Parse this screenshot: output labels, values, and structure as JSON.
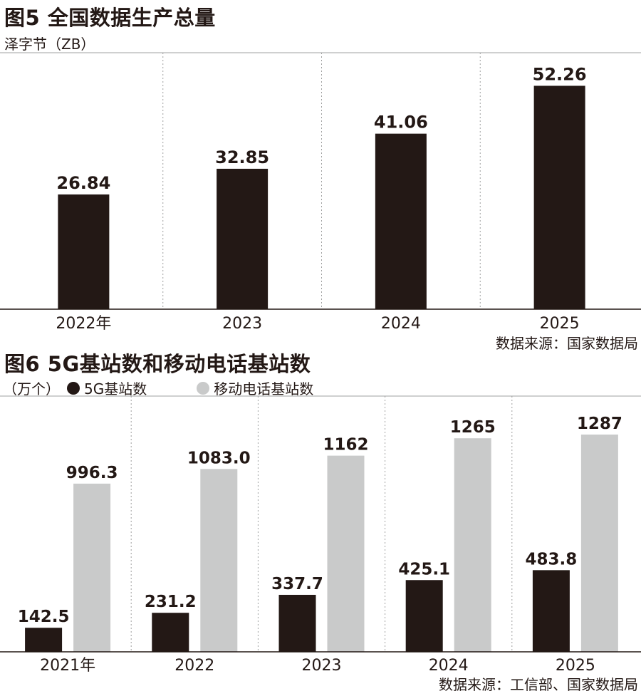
{
  "figure5": {
    "title": "图5 全国数据生产总量",
    "unit": "泽字节（ZB）",
    "source": "数据来源：国家数据局"
  },
  "figure6": {
    "title": "图6 5G基站数和移动电话基站数",
    "unit": "（万个）",
    "legend": [
      "5G基站数",
      "移动电话基站数"
    ],
    "source": "数据来源：工信部、国家数据局"
  },
  "colors": {
    "dark": "#231815",
    "light": "#c9caca",
    "grid": "#9fa0a0"
  },
  "chart_data": [
    {
      "type": "bar",
      "title": "图5 全国数据生产总量",
      "ylabel": "泽字节（ZB）",
      "categories": [
        "2022年",
        "2023",
        "2024",
        "2025"
      ],
      "values": [
        26.84,
        32.85,
        41.06,
        52.26
      ],
      "value_labels": [
        "26.84",
        "32.85",
        "41.06",
        "52.26"
      ],
      "ylim": [
        0,
        60
      ],
      "grid": "vertical dashed separators"
    },
    {
      "type": "bar",
      "title": "图6 5G基站数和移动电话基站数",
      "ylabel": "（万个）",
      "categories": [
        "2021年",
        "2022",
        "2023",
        "2024",
        "2025"
      ],
      "series": [
        {
          "name": "5G基站数",
          "values": [
            142.5,
            231.2,
            337.7,
            425.1,
            483.8
          ],
          "labels": [
            "142.5",
            "231.2",
            "337.7",
            "425.1",
            "483.8"
          ],
          "color": "#231815"
        },
        {
          "name": "移动电话基站数",
          "values": [
            996.3,
            1083.0,
            1162,
            1265,
            1287
          ],
          "labels": [
            "996.3",
            "1083.0",
            "1162",
            "1265",
            "1287"
          ],
          "color": "#c9caca"
        }
      ],
      "ylim": [
        0,
        1400
      ],
      "legend": "top-left",
      "grid": "vertical dashed separators"
    }
  ]
}
